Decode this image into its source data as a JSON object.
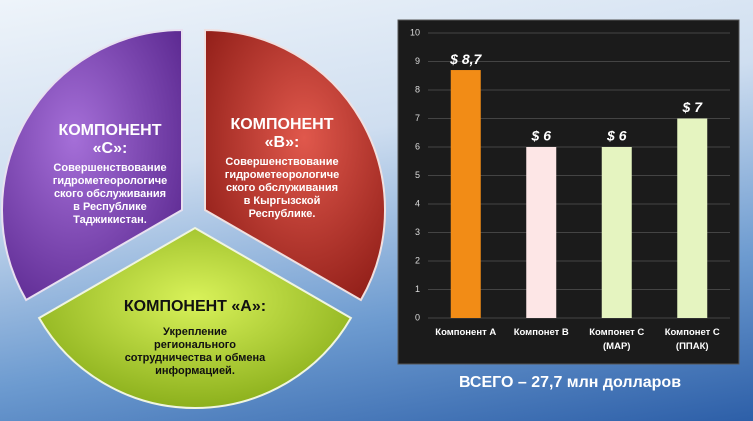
{
  "segments": [
    {
      "title": "КОМПОНЕНТ\n«C»:",
      "text": "Совершенствование\nгидрометеорологиче\nского обслуживания\nв Республике\nТаджикистан."
    },
    {
      "title": "КОМПОНЕНТ\n«B»:",
      "text": "Совершенствование\nгидрометеорологиче\nского обслуживания\nв Кыргызской\nРеспублике."
    },
    {
      "title": "КОМПОНЕНТ «A»:",
      "text": "Укрепление\nрегионального\nсотрудничества и обмена\nинформацией."
    }
  ],
  "chart_data": {
    "type": "bar",
    "categories": [
      "Компонент А",
      "Компонет В",
      "Компонет С\n(MAP)",
      "Компонет С\n(ППАК)"
    ],
    "values": [
      8.7,
      6,
      6,
      7
    ],
    "value_labels": [
      "$ 8,7",
      "$ 6",
      "$ 6",
      "$ 7"
    ],
    "colors": [
      "#f28c16",
      "#fde6e6",
      "#e5f4c0",
      "#e5f4c0"
    ],
    "ylim": [
      0,
      10
    ],
    "yticks": [
      0,
      1,
      2,
      3,
      4,
      5,
      6,
      7,
      8,
      9,
      10
    ],
    "grid": true
  },
  "total": "ВСЕГО  –  27,7 млн  долларов"
}
